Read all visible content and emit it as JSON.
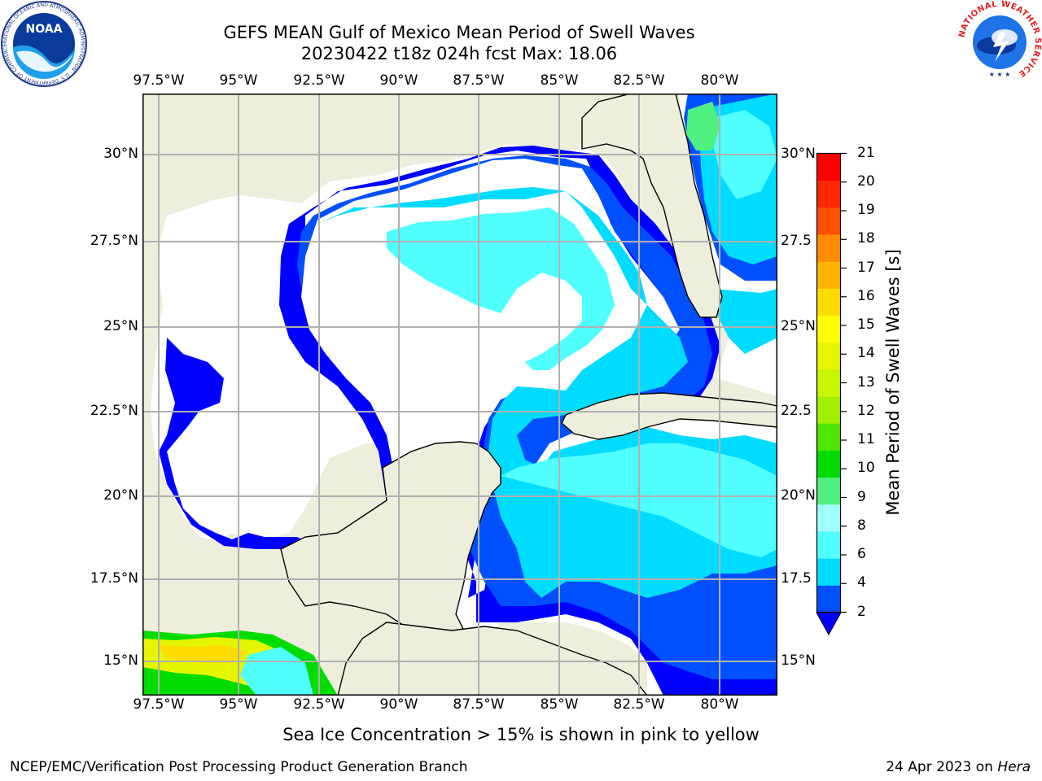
{
  "title": {
    "line1": "GEFS MEAN Gulf of Mexico Mean Period of Swell Waves",
    "line2": "20230422 t18z 024h fcst   Max: 18.06"
  },
  "map": {
    "lon_ticks": [
      "97.5°W",
      "95°W",
      "92.5°W",
      "90°W",
      "87.5°W",
      "85°W",
      "82.5°W",
      "80°W"
    ],
    "lat_ticks_left": [
      "30°N",
      "27.5°N",
      "25°N",
      "22.5°N",
      "20°N",
      "17.5°N",
      "15°N"
    ],
    "lat_ticks_right": [
      "30°N",
      "27.5",
      "25°N",
      "22.5",
      "20°N",
      "17.5",
      "15°N"
    ],
    "land_color": "#eeeedc",
    "grid_color": "#b0b0b0"
  },
  "colorbar": {
    "label": "Mean Period of Swell Waves [s]",
    "ticks": [
      "21",
      "20",
      "19",
      "18",
      "17",
      "16",
      "15",
      "14",
      "13",
      "12",
      "11",
      "10",
      "9",
      "8",
      "6",
      "4",
      "2"
    ],
    "colors_bottom_to_top": [
      "#0050ff",
      "#00dcff",
      "#50ffff",
      "#a0ffff",
      "#50f080",
      "#00dc00",
      "#50e600",
      "#a0f000",
      "#c8f500",
      "#e6f500",
      "#ffff00",
      "#ffdc00",
      "#ffb400",
      "#ff8c00",
      "#ff5000",
      "#ff2800",
      "#ff0000"
    ],
    "under_color": "#0000ff"
  },
  "subtitle": "Sea Ice Concentration > 15% is shown in pink to yellow",
  "footer": {
    "left": "NCEP/EMC/Verification Post Processing Product Generation Branch",
    "right_prefix": "24 Apr 2023 on ",
    "right_host": "Hera"
  },
  "logos": {
    "noaa_text": "NOAA",
    "noaa_ring_text": "NATIONAL OCEANIC AND ATMOSPHERIC ADMINISTRATION · U.S. DEPARTMENT OF COMMERCE ·",
    "nws_text": "NATIONAL WEATHER SERVICE"
  }
}
